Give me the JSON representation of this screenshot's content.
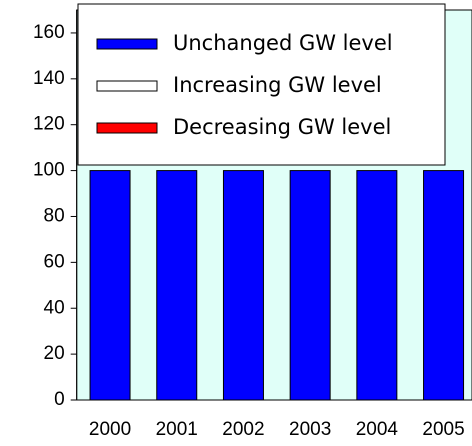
{
  "chart_data": {
    "type": "bar",
    "stacked": true,
    "categories": [
      "2000",
      "2001",
      "2002",
      "2003",
      "2004",
      "2005"
    ],
    "series": [
      {
        "name": "Unchanged GW level",
        "color": "#0000ff",
        "values": [
          100,
          100,
          100,
          100,
          100,
          100
        ]
      },
      {
        "name": "Increasing GW level",
        "color": "#ffffff",
        "values": [
          0,
          0,
          0,
          0,
          0,
          0
        ]
      },
      {
        "name": "Decreasing GW level",
        "color": "#ff0000",
        "values": [
          0,
          0,
          0,
          0,
          0,
          0
        ]
      }
    ],
    "ylim": [
      0,
      170
    ],
    "yticks": [
      0,
      20,
      40,
      60,
      80,
      100,
      120,
      140,
      160
    ],
    "plot_background": "#e0fff8",
    "legend": "top-left"
  }
}
